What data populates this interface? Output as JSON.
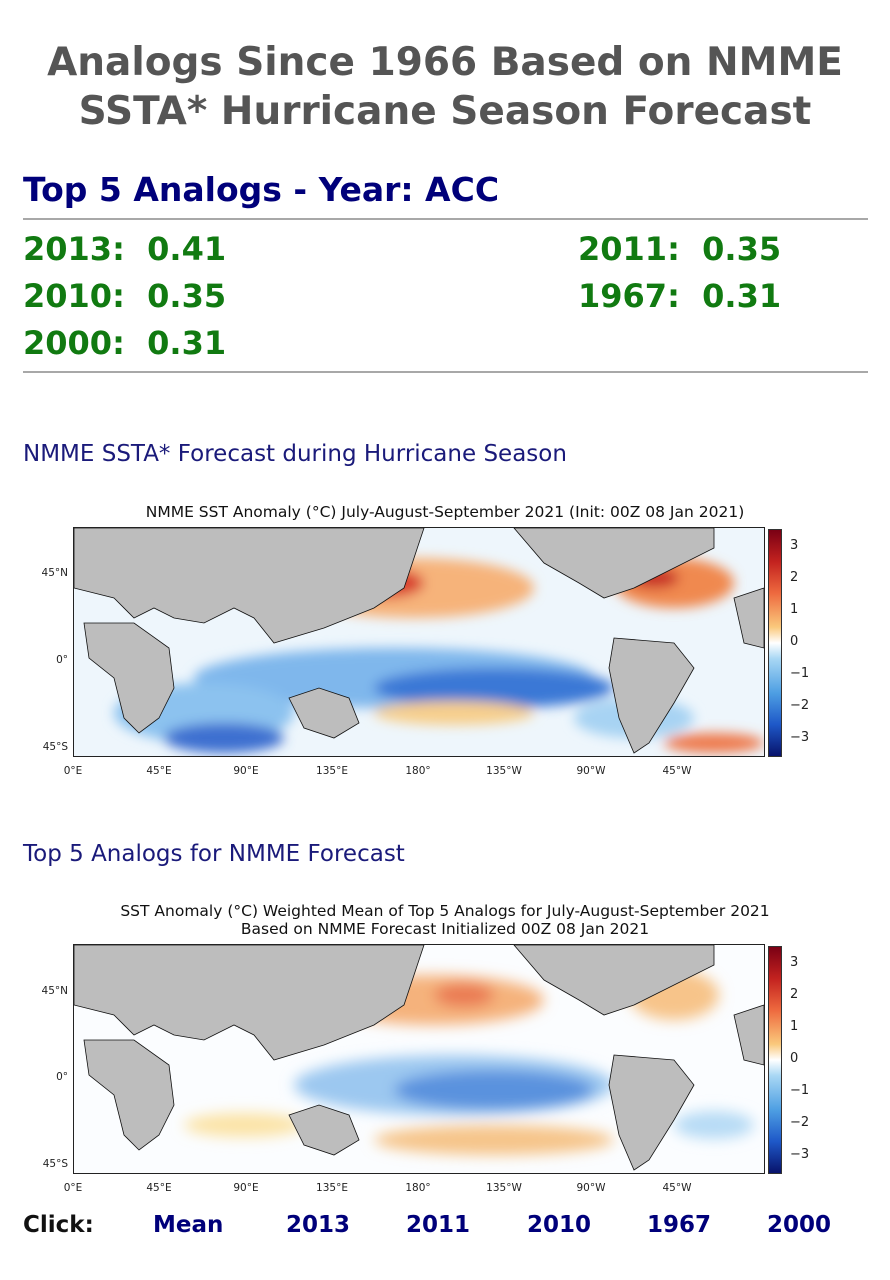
{
  "header": {
    "title_line1": "Analogs Since 1966 Based on NMME",
    "title_line2": "SSTA* Hurricane Season Forecast"
  },
  "analogs": {
    "heading": "Top 5 Analogs - Year: ACC",
    "items": [
      {
        "year": "2013",
        "acc": "0.41"
      },
      {
        "year": "2011",
        "acc": "0.35"
      },
      {
        "year": "2010",
        "acc": "0.35"
      },
      {
        "year": "1967",
        "acc": "0.31"
      },
      {
        "year": "2000",
        "acc": "0.31"
      }
    ]
  },
  "forecast_section": {
    "heading": "NMME SSTA* Forecast during Hurricane Season",
    "map_title": "NMME SST Anomaly (°C) July-August-September 2021 (Init: 00Z 08 Jan 2021)"
  },
  "analog_section": {
    "heading": "Top 5 Analogs for NMME Forecast",
    "map_title_line1": "SST Anomaly (°C) Weighted Mean of Top 5 Analogs for July-August-September 2021",
    "map_title_line2": "Based on NMME Forecast Initialized 00Z 08 Jan 2021"
  },
  "map_axes": {
    "lat_labels": [
      "45°N",
      "0°",
      "45°S"
    ],
    "lon_labels": [
      "0°E",
      "45°E",
      "90°E",
      "135°E",
      "180°",
      "135°W",
      "90°W",
      "45°W"
    ],
    "colorbar_labels": [
      "3",
      "2",
      "1",
      "0",
      "−1",
      "−2",
      "−3"
    ]
  },
  "colors": {
    "warm": "#e8553a",
    "cool": "#4a8fdc",
    "land": "#bcbcbc"
  },
  "click_bar": {
    "label": "Click:",
    "links": [
      "Mean",
      "2013",
      "2011",
      "2010",
      "1967",
      "2000"
    ]
  }
}
